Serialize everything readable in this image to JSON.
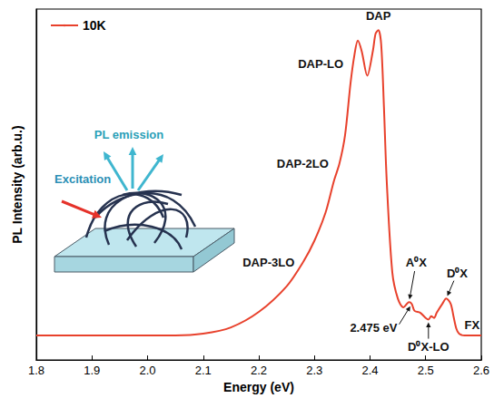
{
  "chart_data": {
    "type": "line",
    "x_label": "Energy (eV)",
    "y_label": "PL Intensity (arb.u.)",
    "x": [
      1.8,
      1.85,
      1.9,
      1.95,
      2.0,
      2.05,
      2.1,
      2.15,
      2.2,
      2.25,
      2.28,
      2.3,
      2.32,
      2.335,
      2.345,
      2.355,
      2.365,
      2.372,
      2.378,
      2.385,
      2.395,
      2.405,
      2.41,
      2.415,
      2.42,
      2.425,
      2.43,
      2.44,
      2.45,
      2.46,
      2.47,
      2.475,
      2.48,
      2.49,
      2.5,
      2.505,
      2.51,
      2.515,
      2.52,
      2.53,
      2.537,
      2.545,
      2.55,
      2.555,
      2.56,
      2.57,
      2.58,
      2.6
    ],
    "series": [
      {
        "name": "10K",
        "color": "#e8412c",
        "values": [
          7,
          7,
          7,
          7,
          7,
          7,
          7.5,
          9.3,
          13.7,
          21,
          28,
          34,
          42,
          51,
          56,
          64,
          79,
          87,
          91,
          88,
          81,
          88,
          93,
          94,
          90,
          72,
          51,
          25,
          17.5,
          15,
          16.5,
          16,
          14,
          13.5,
          12,
          11.5,
          12.5,
          12,
          13.5,
          16,
          17.5,
          16,
          12.5,
          9,
          7.5,
          7,
          7,
          7
        ]
      }
    ],
    "xlim": [
      1.8,
      2.6
    ],
    "xticks": [
      1.8,
      1.9,
      {
        "value": 2,
        "label": "2.0"
      },
      2.1,
      2.2,
      2.3,
      2.4,
      2.5,
      2.6
    ],
    "ylim": [
      0,
      100
    ],
    "grid": false,
    "legend": "top-left",
    "tick_labels": "x",
    "annotations": [
      {
        "text": "DAP",
        "x": 2.415
      },
      {
        "text": "DAP-LO",
        "x": 2.378
      },
      {
        "text": "DAP-2LO",
        "x": 2.345
      },
      {
        "text": "DAP-3LO",
        "x": 2.3
      },
      {
        "text": "A⁰X",
        "x": 2.47
      },
      {
        "text": "2.475 eV",
        "x": 2.475
      },
      {
        "text": "D⁰X-LO",
        "x": 2.505
      },
      {
        "text": "D⁰X",
        "x": 2.537
      },
      {
        "text": "FX",
        "x": 2.56
      }
    ],
    "inset": {
      "excitation_label": "Excitation",
      "emission_label": "PL emission"
    }
  }
}
